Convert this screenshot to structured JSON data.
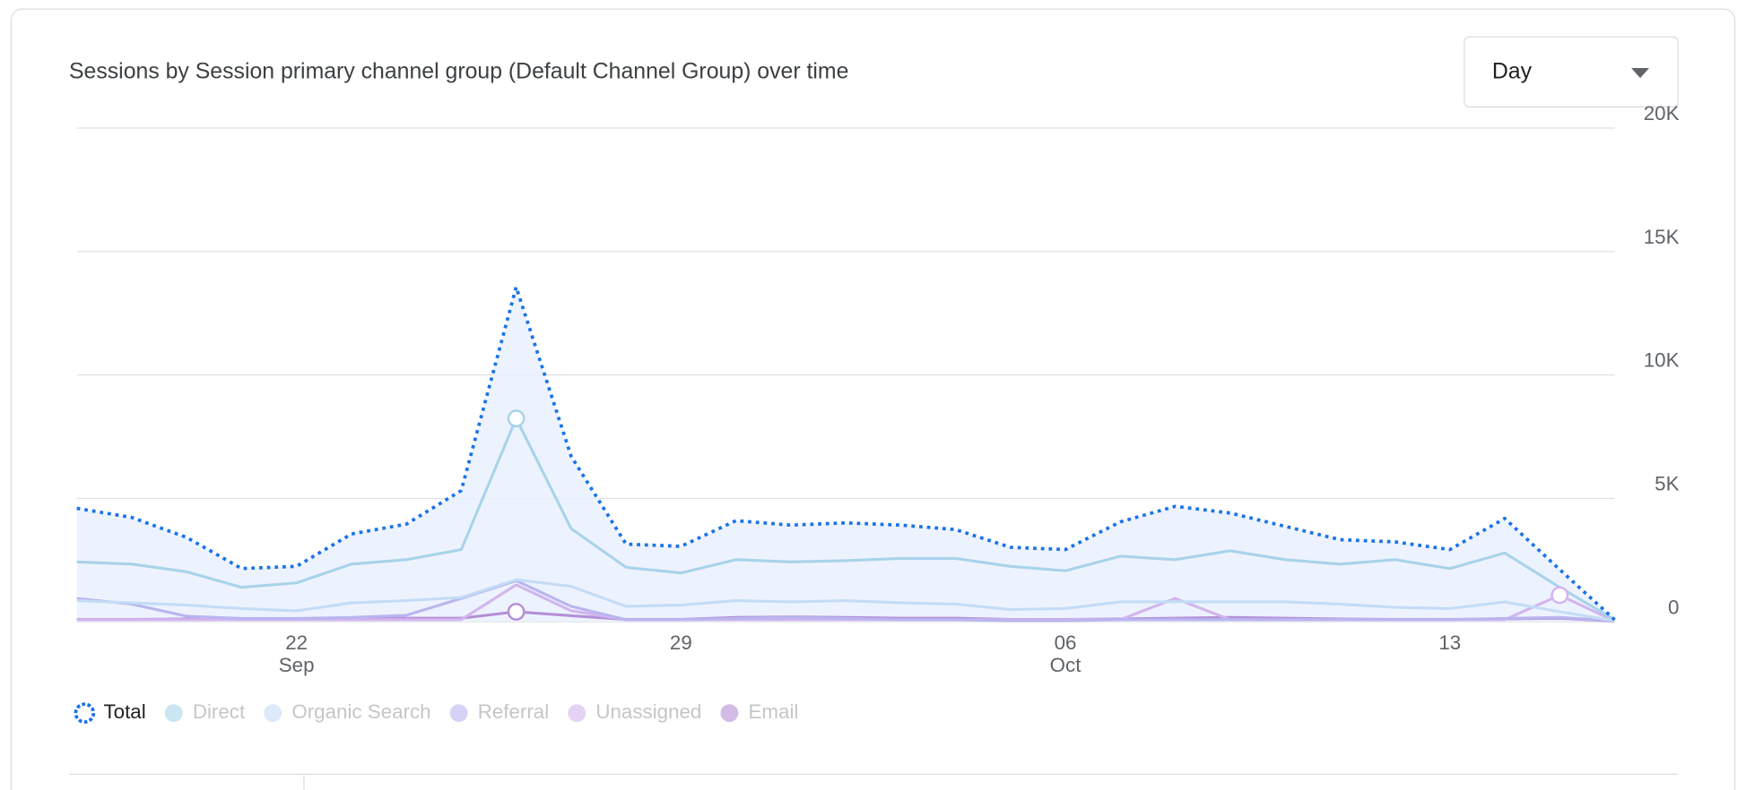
{
  "chart_data": {
    "type": "line",
    "title": "Sessions by Session primary channel group (Default Channel Group) over time",
    "dropdown": "Day",
    "categories": [
      null,
      null,
      null,
      null,
      "22",
      null,
      null,
      null,
      null,
      null,
      null,
      "29",
      null,
      null,
      null,
      null,
      null,
      null,
      "06",
      null,
      null,
      null,
      null,
      null,
      null,
      "13",
      null,
      null,
      null
    ],
    "x_sublabels": [
      null,
      null,
      null,
      null,
      "Sep",
      null,
      null,
      null,
      null,
      null,
      null,
      null,
      null,
      null,
      null,
      null,
      null,
      null,
      "Oct",
      null,
      null,
      null,
      null,
      null,
      null,
      null,
      null,
      null,
      null
    ],
    "ylim": [
      0,
      20000
    ],
    "yticks": [
      0,
      {
        "value": 5000,
        "label": "5K"
      },
      {
        "value": 10000,
        "label": "10K"
      },
      {
        "value": 15000,
        "label": "15K"
      },
      {
        "value": 20000,
        "label": "20K"
      }
    ],
    "grid": true,
    "legend": "bottom-left",
    "series": [
      {
        "name": "Total",
        "color": "#1a73e8",
        "values": [
          4600,
          4230,
          3420,
          2160,
          2250,
          3560,
          3960,
          5320,
          13560,
          6710,
          3150,
          3060,
          4100,
          3920,
          4010,
          3920,
          3740,
          3020,
          2930,
          4050,
          4680,
          4410,
          3870,
          3330,
          3240,
          2930,
          4190,
          2120,
          90
        ]
      },
      {
        "name": "Direct",
        "color": "#a8d3ea",
        "values": [
          2430,
          2340,
          2030,
          1400,
          1580,
          2340,
          2520,
          2930,
          8240,
          3780,
          2210,
          1980,
          2520,
          2430,
          2480,
          2570,
          2570,
          2250,
          2070,
          2660,
          2520,
          2880,
          2520,
          2340,
          2520,
          2160,
          2790,
          1400,
          90
        ]
      },
      {
        "name": "Organic Search",
        "color": "#c4dcf6",
        "values": [
          860,
          770,
          680,
          540,
          450,
          770,
          860,
          990,
          1710,
          1440,
          630,
          680,
          860,
          810,
          860,
          770,
          720,
          500,
          540,
          810,
          810,
          810,
          810,
          720,
          590,
          540,
          810,
          410,
          50
        ]
      },
      {
        "name": "Referral",
        "color": "#b9b5ef",
        "values": [
          950,
          720,
          230,
          140,
          140,
          180,
          270,
          950,
          1670,
          630,
          90,
          90,
          140,
          180,
          140,
          90,
          90,
          50,
          50,
          90,
          90,
          90,
          90,
          90,
          90,
          90,
          140,
          180,
          40
        ]
      },
      {
        "name": "Unassigned",
        "color": "#d3b5ee",
        "values": [
          90,
          90,
          90,
          90,
          90,
          90,
          90,
          90,
          1500,
          450,
          90,
          90,
          90,
          90,
          90,
          90,
          90,
          90,
          90,
          90,
          950,
          90,
          90,
          90,
          90,
          90,
          90,
          1080,
          40
        ]
      },
      {
        "name": "Email",
        "color": "#b48fd6",
        "values": [
          100,
          100,
          120,
          100,
          100,
          150,
          150,
          150,
          410,
          250,
          100,
          100,
          180,
          200,
          180,
          150,
          150,
          100,
          100,
          120,
          150,
          180,
          150,
          120,
          100,
          100,
          120,
          150,
          30
        ]
      }
    ]
  }
}
